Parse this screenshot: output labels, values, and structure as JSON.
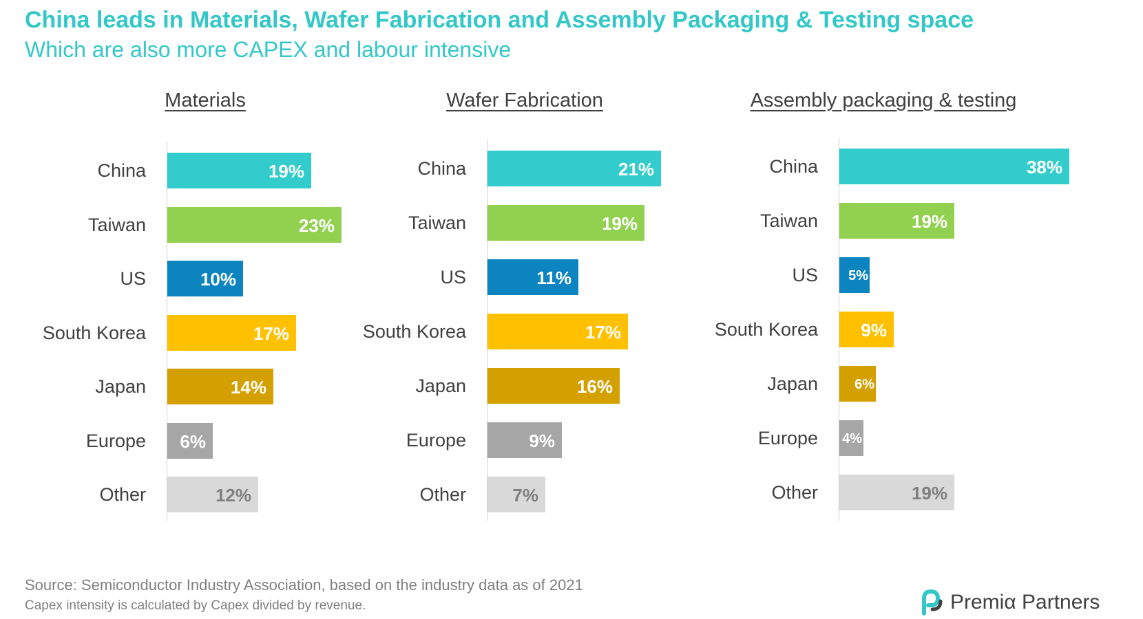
{
  "title": "China leads in Materials, Wafer Fabrication and Assembly Packaging & Testing space",
  "subtitle": "Which are also more CAPEX and labour intensive",
  "source": "Source: Semiconductor Industry Association, based on the industry data as of 2021",
  "note": "Capex intensity is calculated by Capex divided by revenue.",
  "logo": {
    "text": "Premiα Partners"
  },
  "colors": {
    "China": "#33cccc",
    "Taiwan": "#92d050",
    "US": "#0b84c0",
    "South Korea": "#ffc000",
    "Japan": "#d4a000",
    "Europe": "#a6a6a6",
    "Other": "#d9d9d9",
    "accent": "#33c7c7"
  },
  "chart_data": [
    {
      "type": "bar",
      "orientation": "horizontal",
      "title": "Materials",
      "categories": [
        "China",
        "Taiwan",
        "US",
        "South Korea",
        "Japan",
        "Europe",
        "Other"
      ],
      "values": [
        19,
        23,
        10,
        17,
        14,
        6,
        12
      ],
      "labels": [
        "19%",
        "23%",
        "10%",
        "17%",
        "14%",
        "6%",
        "12%"
      ]
    },
    {
      "type": "bar",
      "orientation": "horizontal",
      "title": "Wafer Fabrication",
      "categories": [
        "China",
        "Taiwan",
        "US",
        "South Korea",
        "Japan",
        "Europe",
        "Other"
      ],
      "values": [
        21,
        19,
        11,
        17,
        16,
        9,
        7
      ],
      "labels": [
        "21%",
        "19%",
        "11%",
        "17%",
        "16%",
        "9%",
        "7%"
      ]
    },
    {
      "type": "bar",
      "orientation": "horizontal",
      "title": "Assembly packaging & testing",
      "categories": [
        "China",
        "Taiwan",
        "US",
        "South Korea",
        "Japan",
        "Europe",
        "Other"
      ],
      "values": [
        38,
        19,
        5,
        9,
        6,
        4,
        19
      ],
      "labels": [
        "38%",
        "19%",
        "5%",
        "9%",
        "6%",
        "4%",
        "19%"
      ]
    }
  ]
}
